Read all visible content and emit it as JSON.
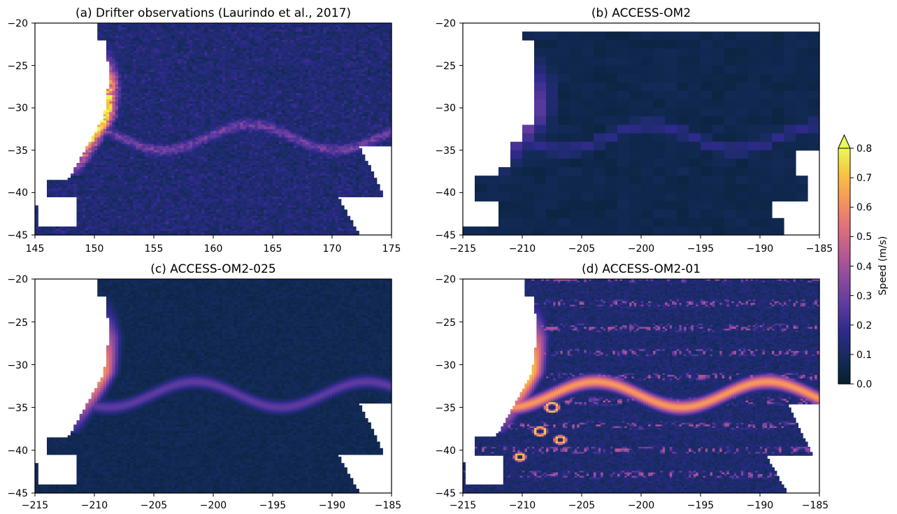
{
  "figure": {
    "colorbar": {
      "label": "Speed (m/s)",
      "ticks": [
        "0.0",
        "0.1",
        "0.2",
        "0.3",
        "0.4",
        "0.5",
        "0.6",
        "0.7",
        "0.8"
      ],
      "range": [
        0.0,
        0.8
      ],
      "extend": "max",
      "colormap": [
        "#04202e",
        "#152b5c",
        "#2e2a8c",
        "#5c3a9e",
        "#8a4a9e",
        "#b85a92",
        "#e0707a",
        "#f5965c",
        "#f9c241",
        "#e8f95a"
      ]
    }
  },
  "chart_data": [
    {
      "type": "heatmap",
      "title": "(a) Drifter observations (Laurindo et al., 2017)",
      "xlim": [
        145,
        175
      ],
      "ylim": [
        -45,
        -20
      ],
      "xticks": [
        "145",
        "150",
        "155",
        "160",
        "165",
        "170",
        "175"
      ],
      "yticks": [
        "−20",
        "−25",
        "−30",
        "−35",
        "−40",
        "−45"
      ],
      "cell_size_deg": 0.25,
      "background_speed": 0.12,
      "features": [
        {
          "name": "East Australian Current core",
          "max_speed": 0.75
        },
        {
          "name": "Tasman Front",
          "max_speed": 0.3
        }
      ]
    },
    {
      "type": "heatmap",
      "title": "(b) ACCESS-OM2",
      "xlim": [
        -215,
        -185
      ],
      "ylim": [
        -45,
        -20
      ],
      "xticks": [
        "−215",
        "−210",
        "−205",
        "−200",
        "−195",
        "−190",
        "−185"
      ],
      "yticks": [
        "−20",
        "−25",
        "−30",
        "−35",
        "−40",
        "−45"
      ],
      "cell_size_deg": 1.0,
      "background_speed": 0.06,
      "features": [
        {
          "name": "East Australian Current core",
          "max_speed": 0.3
        },
        {
          "name": "Tasman Front",
          "max_speed": 0.2
        }
      ]
    },
    {
      "type": "heatmap",
      "title": "(c) ACCESS-OM2-025",
      "xlim": [
        -215,
        -185
      ],
      "ylim": [
        -45,
        -20
      ],
      "xticks": [
        "−215",
        "−210",
        "−205",
        "−200",
        "−195",
        "−190",
        "−185"
      ],
      "yticks": [
        "−20",
        "−25",
        "−30",
        "−35",
        "−40",
        "−45"
      ],
      "cell_size_deg": 0.25,
      "background_speed": 0.07,
      "features": [
        {
          "name": "East Australian Current core",
          "max_speed": 0.6
        },
        {
          "name": "Tasman Front",
          "max_speed": 0.3
        }
      ]
    },
    {
      "type": "heatmap",
      "title": "(d) ACCESS-OM2-01",
      "xlim": [
        -215,
        -185
      ],
      "ylim": [
        -45,
        -20
      ],
      "xticks": [
        "−215",
        "−210",
        "−205",
        "−200",
        "−195",
        "−190",
        "−185"
      ],
      "yticks": [
        "−20",
        "−25",
        "−30",
        "−35",
        "−40",
        "−45"
      ],
      "cell_size_deg": 0.1,
      "background_speed": 0.12,
      "features": [
        {
          "name": "East Australian Current core",
          "max_speed": 0.7
        },
        {
          "name": "eddies",
          "max_speed": 0.7
        }
      ]
    }
  ]
}
